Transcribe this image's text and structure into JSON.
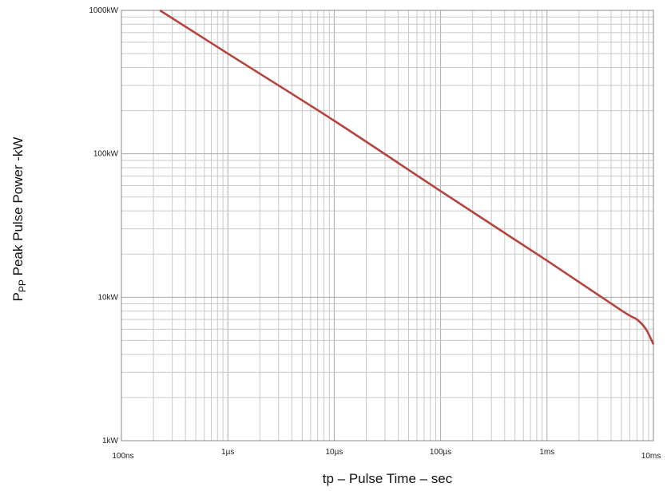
{
  "chart_data": {
    "type": "line",
    "title": "",
    "xlabel": "tp – Pulse Time – sec",
    "ylabel_main": "P",
    "ylabel_sub": "PP",
    "ylabel_rest": " Peak Pulse Power -kW",
    "x_scale": "log",
    "y_scale": "log",
    "xlim": [
      1e-07,
      0.01
    ],
    "ylim": [
      1,
      1000
    ],
    "grid": true,
    "x_ticks": [
      {
        "value": 1e-07,
        "label": "100ns"
      },
      {
        "value": 1e-06,
        "label": "1µs"
      },
      {
        "value": 1e-05,
        "label": "10µs"
      },
      {
        "value": 0.0001,
        "label": "100µs"
      },
      {
        "value": 0.001,
        "label": "1ms"
      },
      {
        "value": 0.01,
        "label": "10ms"
      }
    ],
    "y_ticks": [
      {
        "value": 1,
        "label": "1kW"
      },
      {
        "value": 10,
        "label": "10kW"
      },
      {
        "value": 100,
        "label": "100kW"
      },
      {
        "value": 1000,
        "label": "1000kW"
      }
    ],
    "series": [
      {
        "color": "#b5443f",
        "x": [
          2.3e-07,
          1e-06,
          1e-05,
          0.0001,
          0.001,
          0.005,
          0.007,
          0.0085,
          0.01
        ],
        "y": [
          1000,
          500,
          170,
          55,
          18,
          8.1,
          7.0,
          6.0,
          4.7
        ]
      }
    ]
  }
}
